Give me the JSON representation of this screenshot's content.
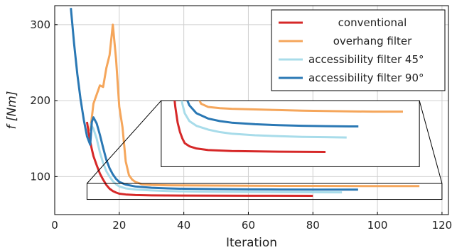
{
  "chart_data": {
    "type": "line",
    "title": "",
    "xlabel": "Iteration",
    "ylabel": "f [Nm]",
    "xlim": [
      0,
      122
    ],
    "ylim": [
      50,
      325
    ],
    "xticks": [
      "0",
      "20",
      "40",
      "60",
      "80",
      "100",
      "120"
    ],
    "yticks": [
      "100",
      "200",
      "300"
    ],
    "grid": true,
    "legend": "top-right",
    "series": [
      {
        "name": "conventional",
        "color": "#d62828",
        "x": [
          10,
          10.5,
          11,
          11.5,
          12,
          13,
          14,
          15,
          16,
          17,
          18,
          19,
          20,
          22,
          25,
          30,
          40,
          60,
          80
        ],
        "y": [
          172,
          158,
          146,
          136,
          127,
          115,
          104,
          96,
          89,
          84,
          81,
          79,
          77.5,
          76.5,
          75.8,
          75.3,
          75,
          74.8,
          74.7
        ]
      },
      {
        "name": "overhang filter",
        "color": "#f5a65b",
        "x": [
          11,
          12,
          13,
          14,
          15,
          16,
          17,
          18,
          19,
          20,
          21,
          22,
          23,
          24,
          25,
          27,
          30,
          35,
          40,
          50,
          60,
          70,
          80,
          90,
          100,
          113
        ],
        "y": [
          160,
          196,
          208,
          220,
          218,
          243,
          260,
          300,
          255,
          192,
          165,
          120,
          102,
          96,
          93,
          90,
          89,
          88.6,
          88.4,
          88.2,
          88,
          87.8,
          87.7,
          87.6,
          87.5,
          87.5
        ]
      },
      {
        "name": "accessibility filter 45°",
        "color": "#a8dcea",
        "x": [
          11,
          12,
          13,
          14,
          15,
          16,
          17,
          18,
          19,
          20,
          22,
          25,
          30,
          35,
          40,
          50,
          60,
          70,
          80,
          89
        ],
        "y": [
          170,
          163,
          150,
          132,
          118,
          107,
          100,
          94,
          90,
          87,
          84.5,
          83,
          81.8,
          81,
          80.5,
          80,
          79.7,
          79.5,
          79.4,
          79.3
        ]
      },
      {
        "name": "accessibility filter 90°",
        "color": "#2a78b4",
        "x": [
          5,
          6,
          7,
          8,
          9,
          10,
          11,
          11.5,
          12,
          13,
          14,
          15,
          16,
          17,
          18,
          19,
          20,
          22,
          25,
          30,
          35,
          40,
          50,
          60,
          70,
          80,
          90,
          94
        ],
        "y": [
          322,
          275,
          235,
          202,
          175,
          153,
          142,
          172,
          178,
          170,
          155,
          138,
          122,
          111,
          103,
          97,
          93,
          89.5,
          87,
          85.3,
          84.5,
          84,
          83.5,
          83.2,
          83,
          82.9,
          82.8,
          82.8
        ]
      }
    ],
    "inset": {
      "source_x": [
        10,
        120
      ],
      "source_y": [
        70,
        91
      ],
      "target_x": [
        33,
        113
      ],
      "target_y": [
        113,
        200
      ]
    }
  }
}
